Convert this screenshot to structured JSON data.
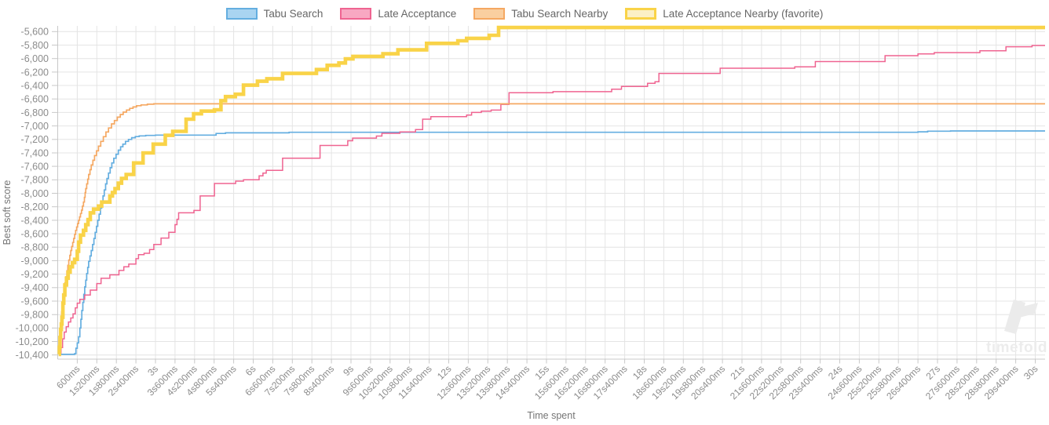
{
  "legend": {
    "items": [
      {
        "label": "Tabu Search",
        "fill": "#A9D4F1",
        "border": "#64AEE0",
        "border_width": 2
      },
      {
        "label": "Late Acceptance",
        "fill": "#F8A8C2",
        "border": "#EF6491",
        "border_width": 2
      },
      {
        "label": "Tabu Search Nearby",
        "fill": "#FACFA0",
        "border": "#F5A862",
        "border_width": 2
      },
      {
        "label": "Late Acceptance Nearby (favorite)",
        "fill": "#FCF0C5",
        "border": "#F9D348",
        "border_width": 3
      }
    ]
  },
  "watermark": {
    "text": "timefold"
  },
  "colors": {
    "grid": "#E4E4E4",
    "axis": "#C8C8C8",
    "tick_text": "#8C8C8C",
    "axis_title": "#757575",
    "legend_text": "#666666",
    "watermark": "#EBEBEB"
  },
  "chart_data": {
    "type": "line",
    "step": "after",
    "title": "",
    "xlabel": "Time spent",
    "ylabel": "Best soft score",
    "grid": true,
    "legend_position": "top",
    "x_range_ms": [
      0,
      30300
    ],
    "y_range": [
      -10460,
      -5520
    ],
    "x_tick_interval_ms": 600,
    "x_tick_labels": [
      "600ms",
      "1s200ms",
      "1s800ms",
      "2s400ms",
      "3s",
      "3s600ms",
      "4s200ms",
      "4s800ms",
      "5s400ms",
      "6s",
      "6s600ms",
      "7s200ms",
      "7s800ms",
      "8s400ms",
      "9s",
      "9s600ms",
      "10s200ms",
      "10s800ms",
      "11s400ms",
      "12s",
      "12s600ms",
      "13s200ms",
      "13s800ms",
      "14s400ms",
      "15s",
      "15s600ms",
      "16s200ms",
      "16s800ms",
      "17s400ms",
      "18s",
      "18s600ms",
      "19s200ms",
      "19s800ms",
      "20s400ms",
      "21s",
      "21s600ms",
      "22s200ms",
      "22s800ms",
      "23s400ms",
      "24s",
      "24s600ms",
      "25s200ms",
      "25s800ms",
      "26s400ms",
      "27s",
      "27s600ms",
      "28s200ms",
      "28s800ms",
      "29s400ms",
      "30s"
    ],
    "y_ticks": [
      -5600,
      -5800,
      -6000,
      -6200,
      -6400,
      -6600,
      -6800,
      -7000,
      -7200,
      -7400,
      -7600,
      -7800,
      -8000,
      -8200,
      -8400,
      -8600,
      -8800,
      -9000,
      -9200,
      -9400,
      -9600,
      -9800,
      -10000,
      -10200,
      -10400
    ],
    "series": [
      {
        "name": "Tabu Search",
        "color": "#64AEE0",
        "width": 1.7,
        "points": [
          [
            100,
            -10390
          ],
          [
            520,
            -10380
          ],
          [
            560,
            -10300
          ],
          [
            600,
            -10220
          ],
          [
            640,
            -10130
          ],
          [
            680,
            -10000
          ],
          [
            710,
            -9870
          ],
          [
            740,
            -9740
          ],
          [
            770,
            -9620
          ],
          [
            800,
            -9500
          ],
          [
            830,
            -9390
          ],
          [
            860,
            -9290
          ],
          [
            890,
            -9190
          ],
          [
            920,
            -9100
          ],
          [
            950,
            -9010
          ],
          [
            990,
            -8930
          ],
          [
            1030,
            -8850
          ],
          [
            1070,
            -8760
          ],
          [
            1110,
            -8670
          ],
          [
            1150,
            -8580
          ],
          [
            1190,
            -8490
          ],
          [
            1230,
            -8400
          ],
          [
            1270,
            -8310
          ],
          [
            1310,
            -8220
          ],
          [
            1350,
            -8130
          ],
          [
            1390,
            -8040
          ],
          [
            1430,
            -7950
          ],
          [
            1470,
            -7860
          ],
          [
            1510,
            -7780
          ],
          [
            1560,
            -7700
          ],
          [
            1610,
            -7620
          ],
          [
            1660,
            -7550
          ],
          [
            1720,
            -7480
          ],
          [
            1790,
            -7420
          ],
          [
            1860,
            -7360
          ],
          [
            1930,
            -7310
          ],
          [
            2000,
            -7270
          ],
          [
            2080,
            -7230
          ],
          [
            2170,
            -7200
          ],
          [
            2270,
            -7175
          ],
          [
            2380,
            -7158
          ],
          [
            2500,
            -7148
          ],
          [
            2700,
            -7141
          ],
          [
            3000,
            -7136
          ],
          [
            4860,
            -7112
          ],
          [
            5150,
            -7102
          ],
          [
            7100,
            -7094
          ],
          [
            26400,
            -7088
          ],
          [
            26700,
            -7078
          ],
          [
            27400,
            -7075
          ]
        ]
      },
      {
        "name": "Late Acceptance",
        "color": "#EF6491",
        "width": 1.5,
        "points": [
          [
            60,
            -10370
          ],
          [
            100,
            -10290
          ],
          [
            150,
            -10160
          ],
          [
            200,
            -10060
          ],
          [
            260,
            -9980
          ],
          [
            330,
            -9910
          ],
          [
            400,
            -9850
          ],
          [
            470,
            -9790
          ],
          [
            540,
            -9700
          ],
          [
            600,
            -9630
          ],
          [
            680,
            -9575
          ],
          [
            830,
            -9510
          ],
          [
            1000,
            -9437
          ],
          [
            1200,
            -9340
          ],
          [
            1330,
            -9262
          ],
          [
            1600,
            -9210
          ],
          [
            1880,
            -9145
          ],
          [
            2030,
            -9090
          ],
          [
            2180,
            -9050
          ],
          [
            2400,
            -8970
          ],
          [
            2480,
            -8910
          ],
          [
            2650,
            -8890
          ],
          [
            2820,
            -8835
          ],
          [
            2950,
            -8760
          ],
          [
            3170,
            -8665
          ],
          [
            3410,
            -8580
          ],
          [
            3600,
            -8465
          ],
          [
            3660,
            -8385
          ],
          [
            3710,
            -8290
          ],
          [
            4180,
            -8255
          ],
          [
            4370,
            -8040
          ],
          [
            4810,
            -7855
          ],
          [
            5460,
            -7820
          ],
          [
            5700,
            -7800
          ],
          [
            6180,
            -7740
          ],
          [
            6300,
            -7700
          ],
          [
            6400,
            -7660
          ],
          [
            6900,
            -7480
          ],
          [
            8050,
            -7290
          ],
          [
            8900,
            -7220
          ],
          [
            9050,
            -7180
          ],
          [
            9780,
            -7150
          ],
          [
            9950,
            -7110
          ],
          [
            10500,
            -7090
          ],
          [
            10980,
            -7055
          ],
          [
            11200,
            -6900
          ],
          [
            11450,
            -6862
          ],
          [
            12550,
            -6840
          ],
          [
            12700,
            -6800
          ],
          [
            13000,
            -6780
          ],
          [
            13300,
            -6765
          ],
          [
            13600,
            -6680
          ],
          [
            13850,
            -6507
          ],
          [
            15200,
            -6492
          ],
          [
            17000,
            -6455
          ],
          [
            17300,
            -6415
          ],
          [
            18100,
            -6367
          ],
          [
            18330,
            -6344
          ],
          [
            18450,
            -6220
          ],
          [
            20330,
            -6143
          ],
          [
            22620,
            -6122
          ],
          [
            23250,
            -6045
          ],
          [
            25390,
            -5957
          ],
          [
            26400,
            -5932
          ],
          [
            26900,
            -5912
          ],
          [
            28300,
            -5884
          ],
          [
            29100,
            -5825
          ],
          [
            29900,
            -5806
          ]
        ]
      },
      {
        "name": "Tabu Search Nearby",
        "color": "#F5A862",
        "width": 1.7,
        "points": [
          [
            40,
            -10380
          ],
          [
            55,
            -10260
          ],
          [
            70,
            -10130
          ],
          [
            85,
            -10000
          ],
          [
            100,
            -9880
          ],
          [
            120,
            -9760
          ],
          [
            140,
            -9640
          ],
          [
            165,
            -9530
          ],
          [
            190,
            -9430
          ],
          [
            220,
            -9330
          ],
          [
            250,
            -9240
          ],
          [
            280,
            -9150
          ],
          [
            310,
            -9070
          ],
          [
            340,
            -8990
          ],
          [
            370,
            -8920
          ],
          [
            400,
            -8850
          ],
          [
            430,
            -8790
          ],
          [
            460,
            -8730
          ],
          [
            490,
            -8670
          ],
          [
            520,
            -8610
          ],
          [
            550,
            -8550
          ],
          [
            580,
            -8500
          ],
          [
            610,
            -8450
          ],
          [
            640,
            -8400
          ],
          [
            670,
            -8350
          ],
          [
            700,
            -8300
          ],
          [
            730,
            -8250
          ],
          [
            760,
            -8190
          ],
          [
            790,
            -8130
          ],
          [
            820,
            -8060
          ],
          [
            840,
            -7990
          ],
          [
            860,
            -7930
          ],
          [
            890,
            -7860
          ],
          [
            920,
            -7790
          ],
          [
            950,
            -7720
          ],
          [
            990,
            -7650
          ],
          [
            1030,
            -7580
          ],
          [
            1080,
            -7510
          ],
          [
            1130,
            -7440
          ],
          [
            1190,
            -7370
          ],
          [
            1250,
            -7300
          ],
          [
            1320,
            -7230
          ],
          [
            1400,
            -7160
          ],
          [
            1480,
            -7090
          ],
          [
            1560,
            -7030
          ],
          [
            1650,
            -6970
          ],
          [
            1740,
            -6920
          ],
          [
            1830,
            -6870
          ],
          [
            1920,
            -6830
          ],
          [
            2010,
            -6795
          ],
          [
            2110,
            -6765
          ],
          [
            2210,
            -6740
          ],
          [
            2310,
            -6718
          ],
          [
            2420,
            -6700
          ],
          [
            2560,
            -6688
          ],
          [
            2750,
            -6678
          ],
          [
            2950,
            -6672
          ]
        ]
      },
      {
        "name": "Late Acceptance Nearby (favorite)",
        "color": "#F9D348",
        "width": 4.6,
        "points": [
          [
            30,
            -10390
          ],
          [
            50,
            -10285
          ],
          [
            70,
            -10140
          ],
          [
            90,
            -10020
          ],
          [
            110,
            -9940
          ],
          [
            130,
            -9840
          ],
          [
            160,
            -9630
          ],
          [
            185,
            -9510
          ],
          [
            220,
            -9360
          ],
          [
            270,
            -9260
          ],
          [
            320,
            -9170
          ],
          [
            380,
            -9090
          ],
          [
            450,
            -9030
          ],
          [
            520,
            -8980
          ],
          [
            600,
            -8860
          ],
          [
            640,
            -8725
          ],
          [
            700,
            -8620
          ],
          [
            790,
            -8550
          ],
          [
            860,
            -8465
          ],
          [
            930,
            -8390
          ],
          [
            1000,
            -8290
          ],
          [
            1100,
            -8235
          ],
          [
            1250,
            -8190
          ],
          [
            1350,
            -8130
          ],
          [
            1600,
            -8040
          ],
          [
            1680,
            -7990
          ],
          [
            1760,
            -7930
          ],
          [
            1860,
            -7850
          ],
          [
            1960,
            -7780
          ],
          [
            2100,
            -7720
          ],
          [
            2330,
            -7550
          ],
          [
            2620,
            -7400
          ],
          [
            2930,
            -7270
          ],
          [
            3300,
            -7140
          ],
          [
            3530,
            -7080
          ],
          [
            3940,
            -6900
          ],
          [
            4170,
            -6820
          ],
          [
            4410,
            -6780
          ],
          [
            4810,
            -6760
          ],
          [
            5010,
            -6625
          ],
          [
            5150,
            -6565
          ],
          [
            5450,
            -6530
          ],
          [
            5700,
            -6395
          ],
          [
            6130,
            -6337
          ],
          [
            6420,
            -6300
          ],
          [
            6900,
            -6220
          ],
          [
            7940,
            -6163
          ],
          [
            8270,
            -6100
          ],
          [
            8630,
            -6066
          ],
          [
            8830,
            -6005
          ],
          [
            9060,
            -5968
          ],
          [
            9980,
            -5929
          ],
          [
            10440,
            -5871
          ],
          [
            11320,
            -5774
          ],
          [
            12280,
            -5736
          ],
          [
            12550,
            -5700
          ],
          [
            13240,
            -5655
          ],
          [
            13530,
            -5540
          ]
        ]
      }
    ]
  }
}
